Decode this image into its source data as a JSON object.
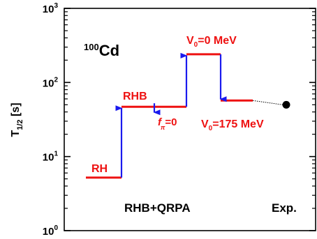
{
  "chart_data": {
    "type": "line",
    "title": "",
    "ylabel": {
      "main": "T",
      "sub": "1/2",
      "unit": " [s]"
    },
    "xlabel": "",
    "yscale": "log",
    "ylim": [
      1,
      1000
    ],
    "yticks": [
      {
        "value": 1,
        "base": "10",
        "exp": "0"
      },
      {
        "value": 10,
        "base": "10",
        "exp": "1"
      },
      {
        "value": 100,
        "base": "10",
        "exp": "2"
      },
      {
        "value": 1000,
        "base": "10",
        "exp": "3"
      }
    ],
    "grid": false,
    "levels": [
      {
        "label": "RH",
        "value": 5.2
      },
      {
        "label": "RHB",
        "value": 47
      },
      {
        "label": "f_pi=0",
        "value": 47
      },
      {
        "label": "V0=0 MeV",
        "value": 240
      },
      {
        "label": "V0=175 MeV",
        "value": 57
      }
    ],
    "experiment": {
      "label": "Exp.",
      "value": 50
    },
    "colors": {
      "levels": "#ee1111",
      "arrows": "#1a1aee",
      "exp": "#000000"
    }
  },
  "annotations": {
    "nucleus_mass": "100",
    "nucleus_symbol": "Cd",
    "rh": "RH",
    "rhb": "RHB",
    "fpi_f": "f",
    "fpi_sub": "π",
    "fpi_rest": "=0",
    "v0_top_v": "V",
    "v0_top_sub": "0",
    "v0_top_rest": "=0 MeV",
    "v0_bot_v": "V",
    "v0_bot_sub": "0",
    "v0_bot_rest": "=175 MeV",
    "model": "RHB+QRPA",
    "exp": "Exp."
  }
}
